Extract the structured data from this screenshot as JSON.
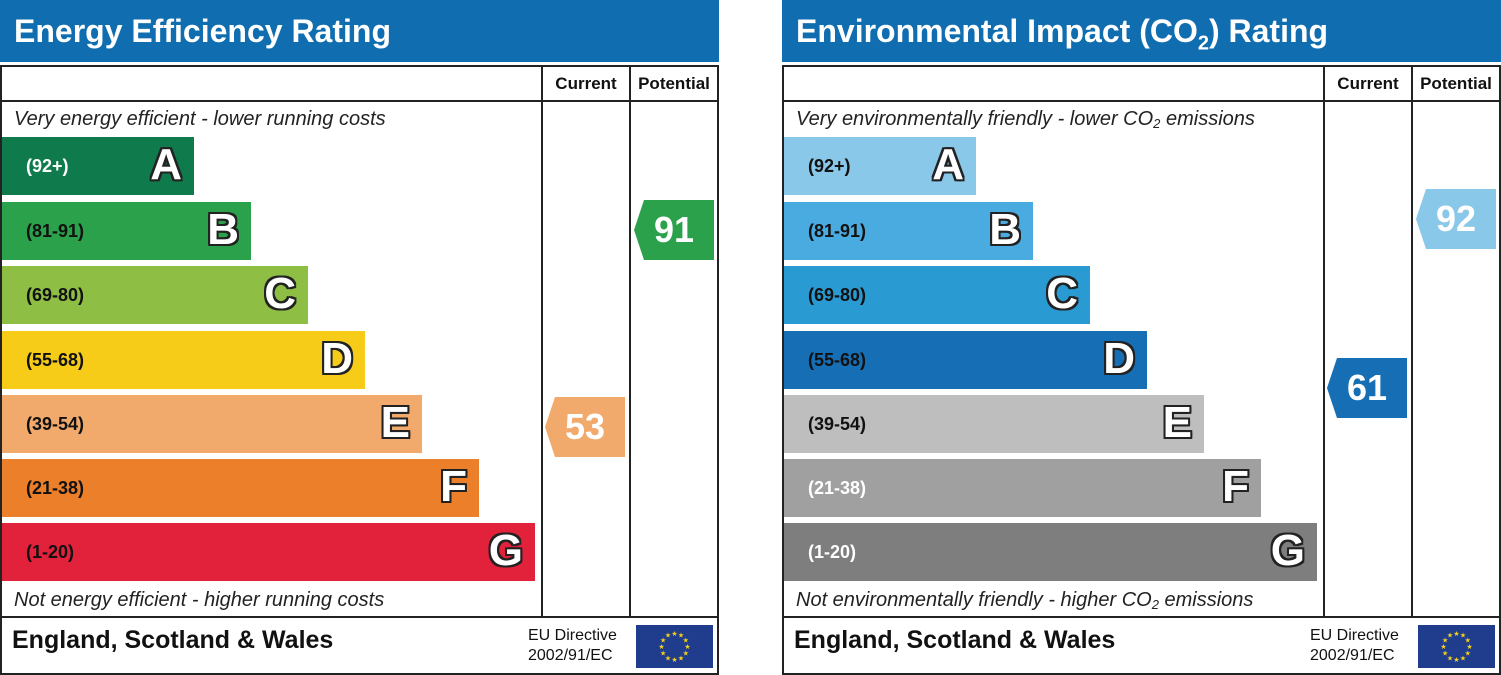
{
  "panels": [
    {
      "id": "eer",
      "title": "Energy Efficiency Rating",
      "col_current": "Current",
      "col_potential": "Potential",
      "top_caption": "Very energy efficient - lower running costs",
      "bottom_caption": "Not energy efficient - higher running costs",
      "footer_region": "England, Scotland & Wales",
      "footer_directive_line1": "EU Directive",
      "footer_directive_line2": "2002/91/EC",
      "bands": [
        {
          "range": "(92+)",
          "letter": "A",
          "color": "#0f7b4d",
          "range_color": "light"
        },
        {
          "range": "(81-91)",
          "letter": "B",
          "color": "#2aa14a",
          "range_color": "dark"
        },
        {
          "range": "(69-80)",
          "letter": "C",
          "color": "#8fbe45",
          "range_color": "dark"
        },
        {
          "range": "(55-68)",
          "letter": "D",
          "color": "#f6cc19",
          "range_color": "dark"
        },
        {
          "range": "(39-54)",
          "letter": "E",
          "color": "#f2a96c",
          "range_color": "dark"
        },
        {
          "range": "(21-38)",
          "letter": "F",
          "color": "#ec7f2a",
          "range_color": "dark"
        },
        {
          "range": "(1-20)",
          "letter": "G",
          "color": "#e2213b",
          "range_color": "dark"
        }
      ],
      "current": {
        "value": "53",
        "color": "#f2a96c"
      },
      "potential": {
        "value": "91",
        "color": "#2aa14a"
      }
    },
    {
      "id": "ei",
      "title": "Environmental Impact (CO",
      "title_sub": "2",
      "title_tail": ") Rating",
      "col_current": "Current",
      "col_potential": "Potential",
      "top_caption": "Very environmentally friendly - lower CO",
      "top_caption_sub": "2",
      "top_caption_tail": " emissions",
      "bottom_caption": "Not environmentally friendly - higher CO",
      "bottom_caption_sub": "2",
      "bottom_caption_tail": " emissions",
      "footer_region": "England, Scotland & Wales",
      "footer_directive_line1": "EU Directive",
      "footer_directive_line2": "2002/91/EC",
      "bands": [
        {
          "range": "(92+)",
          "letter": "A",
          "color": "#8ac8ea",
          "range_color": "dark"
        },
        {
          "range": "(81-91)",
          "letter": "B",
          "color": "#4aabe0",
          "range_color": "dark"
        },
        {
          "range": "(69-80)",
          "letter": "C",
          "color": "#2a9ad3",
          "range_color": "dark"
        },
        {
          "range": "(55-68)",
          "letter": "D",
          "color": "#166fb4",
          "range_color": "dark"
        },
        {
          "range": "(39-54)",
          "letter": "E",
          "color": "#bdbebd",
          "range_color": "dark"
        },
        {
          "range": "(21-38)",
          "letter": "F",
          "color": "#a0a0a0",
          "range_color": "light"
        },
        {
          "range": "(1-20)",
          "letter": "G",
          "color": "#7e7e7e",
          "range_color": "light"
        }
      ],
      "current": {
        "value": "61",
        "color": "#166fb4"
      },
      "potential": {
        "value": "92",
        "color": "#8ac8ea"
      }
    }
  ],
  "chart_data": [
    {
      "type": "bar",
      "title": "Energy Efficiency Rating",
      "categories": [
        "A",
        "B",
        "C",
        "D",
        "E",
        "F",
        "G"
      ],
      "ranges": [
        "(92+)",
        "(81-91)",
        "(69-80)",
        "(55-68)",
        "(39-54)",
        "(21-38)",
        "(1-20)"
      ],
      "current": 53,
      "potential": 91
    },
    {
      "type": "bar",
      "title": "Environmental Impact (CO2) Rating",
      "categories": [
        "A",
        "B",
        "C",
        "D",
        "E",
        "F",
        "G"
      ],
      "ranges": [
        "(92+)",
        "(81-91)",
        "(69-80)",
        "(55-68)",
        "(39-54)",
        "(21-38)",
        "(1-20)"
      ],
      "current": 61,
      "potential": 92
    }
  ]
}
